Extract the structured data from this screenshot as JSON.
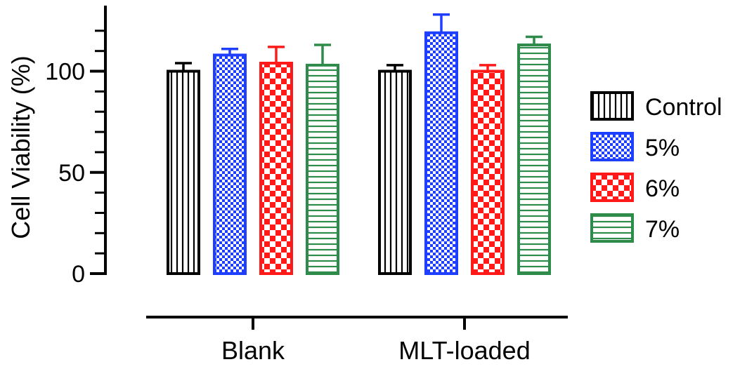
{
  "chart_data": {
    "type": "bar",
    "title": "",
    "xlabel": "",
    "ylabel": "Cell Viability (%)",
    "ylim": [
      0,
      130
    ],
    "yticks": [
      0,
      50,
      100
    ],
    "categories": [
      "Blank",
      "MLT-loaded"
    ],
    "series": [
      {
        "name": "Control",
        "color": "#000000",
        "pattern": "vertical-lines",
        "values": [
          100,
          100
        ],
        "errors": [
          4,
          3
        ]
      },
      {
        "name": "5%",
        "color": "#1f3fff",
        "pattern": "fine-checker",
        "values": [
          108,
          119
        ],
        "errors": [
          3,
          9
        ]
      },
      {
        "name": "6%",
        "color": "#ff1a1a",
        "pattern": "coarse-checker",
        "values": [
          104,
          100
        ],
        "errors": [
          8,
          3
        ]
      },
      {
        "name": "7%",
        "color": "#2e8b4a",
        "pattern": "horizontal-lines",
        "values": [
          103,
          113
        ],
        "errors": [
          10,
          4
        ]
      }
    ],
    "legend": {
      "position": "right",
      "entries": [
        "Control",
        "5%",
        "6%",
        "7%"
      ]
    },
    "grid": false
  }
}
